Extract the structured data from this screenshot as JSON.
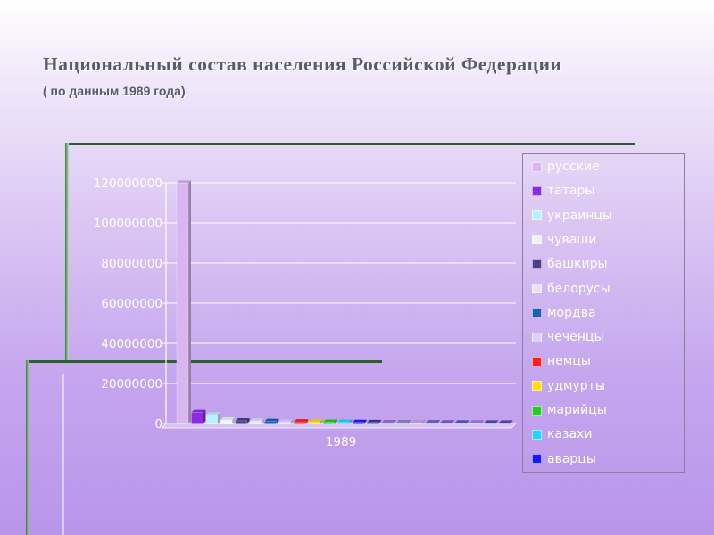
{
  "title": "Национальный состав населения Российской Федерации",
  "subtitle": "( по данным 1989 года)",
  "chart_data": {
    "type": "bar",
    "categories": [
      "1989"
    ],
    "ylim": [
      0,
      120000000
    ],
    "yticks": [
      "0",
      "20000000",
      "40000000",
      "60000000",
      "80000000",
      "100000000",
      "120000000"
    ],
    "grid": true,
    "legend_position": "right",
    "series": [
      {
        "name": "русские",
        "values": [
          119900000
        ],
        "color": "#d8b6f0"
      },
      {
        "name": "татары",
        "values": [
          5500000
        ],
        "color": "#8a2be2"
      },
      {
        "name": "украинцы",
        "values": [
          4360000
        ],
        "color": "#b8f0ff"
      },
      {
        "name": "чуваши",
        "values": [
          1770000
        ],
        "color": "#eef2ff"
      },
      {
        "name": "башкиры",
        "values": [
          1350000
        ],
        "color": "#4a3f8a"
      },
      {
        "name": "белорусы",
        "values": [
          1210000
        ],
        "color": "#e7e3ff"
      },
      {
        "name": "мордва",
        "values": [
          1070000
        ],
        "color": "#1a5fb4"
      },
      {
        "name": "чеченцы",
        "values": [
          900000
        ],
        "color": "#d9d2ff"
      },
      {
        "name": "немцы",
        "values": [
          840000
        ],
        "color": "#ff1f1f"
      },
      {
        "name": "удмурты",
        "values": [
          710000
        ],
        "color": "#ffe000"
      },
      {
        "name": "марийцы",
        "values": [
          640000
        ],
        "color": "#22cc22"
      },
      {
        "name": "казахи",
        "values": [
          640000
        ],
        "color": "#22d4ff"
      },
      {
        "name": "аварцы",
        "values": [
          540000
        ],
        "color": "#1a1aff"
      },
      {
        "name": "",
        "values": [
          500000
        ],
        "color": "#3a3aa0"
      },
      {
        "name": "",
        "values": [
          430000
        ],
        "color": "#9a6bd8"
      },
      {
        "name": "",
        "values": [
          420000
        ],
        "color": "#8a88c8"
      },
      {
        "name": "",
        "values": [
          400000
        ],
        "color": "#c8a0f0"
      },
      {
        "name": "",
        "values": [
          380000
        ],
        "color": "#6666cc"
      },
      {
        "name": "",
        "values": [
          360000
        ],
        "color": "#7a5cd8"
      },
      {
        "name": "",
        "values": [
          340000
        ],
        "color": "#5a5ad0"
      },
      {
        "name": "",
        "values": [
          320000
        ],
        "color": "#a37ee8"
      },
      {
        "name": "",
        "values": [
          300000
        ],
        "color": "#4b4bb8"
      },
      {
        "name": "",
        "values": [
          280000
        ],
        "color": "#6b3fb0"
      }
    ]
  }
}
